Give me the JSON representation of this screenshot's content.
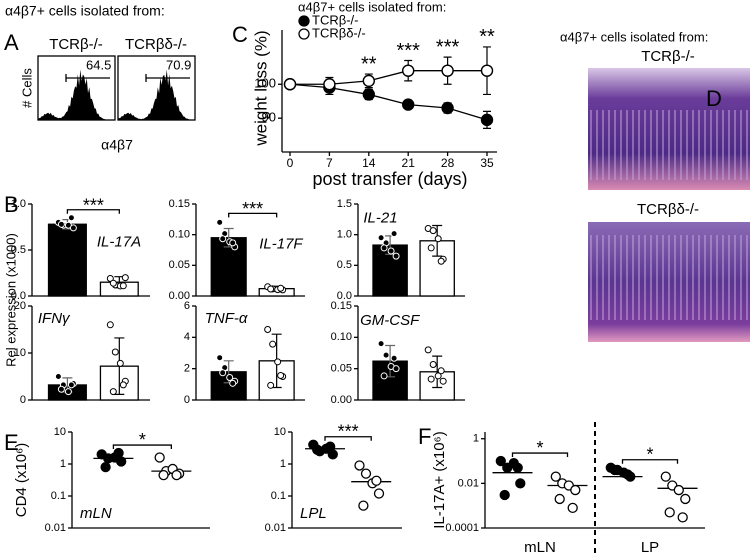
{
  "panel_labels": [
    "A",
    "B",
    "C",
    "D",
    "E",
    "F"
  ],
  "panel_d": {
    "title": "α4β7+ cells isolated from:",
    "labels": [
      "TCRβ-/-",
      "TCRβδ-/-"
    ]
  },
  "chart_data": [
    {
      "type": "flow",
      "title": "α4β7+ cells isolated from:",
      "ylabel": "# Cells",
      "xlabel": "α4β7",
      "samples": [
        {
          "name": "TCRβ-/-",
          "gate": 64.5
        },
        {
          "name": "TCRβδ-/-",
          "gate": 70.9
        }
      ]
    },
    {
      "type": "line",
      "title": "α4β7+ cells isolated from:",
      "xlabel": "post transfer (days)",
      "ylabel": "weight loss (%)",
      "x": [
        0,
        7,
        14,
        21,
        28,
        35
      ],
      "xlim": [
        0,
        35
      ],
      "xticks": [
        0,
        7,
        14,
        21,
        28,
        35
      ],
      "ylim": [
        81.5,
        116
      ],
      "yticks": [
        90,
        100
      ],
      "series": [
        {
          "name": "TCRβ-/-",
          "color": "#000000",
          "values": [
            100,
            99,
            97,
            94,
            93,
            89.5
          ],
          "errors": [
            1,
            2,
            1.5,
            1,
            1.5,
            2.5
          ]
        },
        {
          "name": "TCRβδ-/-",
          "color": "#ffffff",
          "values": [
            100,
            100,
            101,
            104,
            104,
            104
          ],
          "errors": [
            1,
            2,
            2,
            3,
            4,
            7
          ]
        }
      ],
      "annotations": [
        {
          "x": 14,
          "text": "**"
        },
        {
          "x": 21,
          "text": "***"
        },
        {
          "x": 28,
          "text": "***"
        },
        {
          "x": 35,
          "text": "**"
        }
      ]
    },
    {
      "type": "bar",
      "ylabel": "Rel expression (x1000)",
      "label": "IL-17A",
      "colors": [
        "#000000",
        "#ffffff"
      ],
      "ylim": [
        0,
        1
      ],
      "yticks": [
        {
          "value": 0,
          "label": "0.0"
        },
        {
          "value": 0.5,
          "label": "0.5"
        },
        {
          "value": 1,
          "label": "1.0"
        }
      ],
      "values": [
        0.78,
        0.15
      ],
      "errors": [
        0.05,
        0.06
      ],
      "points": [
        [
          0.8,
          0.76,
          0.78,
          0.74,
          0.79,
          0.84
        ],
        [
          0.19,
          0.11,
          0.12,
          0.2,
          0.15,
          0.1
        ]
      ],
      "significance": "***"
    },
    {
      "type": "bar",
      "label": "IL-17F",
      "colors": [
        "#000000",
        "#ffffff"
      ],
      "ylim": [
        0,
        0.15
      ],
      "yticks": [
        {
          "value": 0,
          "label": "0.00"
        },
        {
          "value": 0.05,
          "label": "0.05"
        },
        {
          "value": 0.1,
          "label": "0.10"
        },
        {
          "value": 0.15,
          "label": "0.15"
        }
      ],
      "values": [
        0.095,
        0.012
      ],
      "errors": [
        0.015,
        0.004
      ],
      "points": [
        [
          0.12,
          0.1,
          0.09,
          0.08,
          0.095,
          0.085
        ],
        [
          0.015,
          0.01,
          0.012,
          0.01,
          0.013,
          0.011
        ]
      ],
      "significance": "***"
    },
    {
      "type": "bar",
      "label": "IL-21",
      "colors": [
        "#000000",
        "#ffffff"
      ],
      "ylim": [
        0,
        1.5
      ],
      "yticks": [
        {
          "value": 0,
          "label": "0.0"
        },
        {
          "value": 0.5,
          "label": "0.5"
        },
        {
          "value": 1,
          "label": "1.0"
        },
        {
          "value": 1.5,
          "label": "1.5"
        }
      ],
      "values": [
        0.83,
        0.9
      ],
      "errors": [
        0.15,
        0.25
      ],
      "points": [
        [
          0.95,
          0.85,
          0.75,
          0.65,
          0.8,
          1.0
        ],
        [
          1.1,
          1.05,
          0.95,
          0.6,
          0.8,
          0.55
        ]
      ]
    },
    {
      "type": "bar",
      "label": "IFNγ",
      "colors": [
        "#000000",
        "#ffffff"
      ],
      "ylim": [
        0,
        20
      ],
      "yticks": [
        0,
        10,
        20
      ],
      "values": [
        3.2,
        7.2
      ],
      "errors": [
        1.5,
        6
      ],
      "points": [
        [
          5,
          3,
          2,
          3.5,
          2.5,
          3
        ],
        [
          16,
          10,
          8,
          4,
          2,
          3
        ]
      ]
    },
    {
      "type": "bar",
      "label": "TNF-α",
      "colors": [
        "#000000",
        "#ffffff"
      ],
      "ylim": [
        0,
        6
      ],
      "yticks": [
        0,
        2,
        4,
        6
      ],
      "values": [
        1.8,
        2.5
      ],
      "errors": [
        0.7,
        1.7
      ],
      "points": [
        [
          2.7,
          2,
          1.5,
          1.2,
          1.8,
          1
        ],
        [
          4.5,
          3.5,
          2.5,
          1.5,
          1,
          1.5
        ]
      ]
    },
    {
      "type": "bar",
      "label": "GM-CSF",
      "colors": [
        "#000000",
        "#ffffff"
      ],
      "ylim": [
        0,
        0.15
      ],
      "yticks": [
        {
          "value": 0,
          "label": "0.00"
        },
        {
          "value": 0.05,
          "label": "0.05"
        },
        {
          "value": 0.1,
          "label": "0.10"
        },
        {
          "value": 0.15,
          "label": "0.15"
        }
      ],
      "values": [
        0.062,
        0.045
      ],
      "errors": [
        0.025,
        0.025
      ],
      "points": [
        [
          0.09,
          0.07,
          0.055,
          0.05,
          0.04,
          0.065
        ],
        [
          0.08,
          0.055,
          0.04,
          0.03,
          0.035,
          0.045
        ]
      ]
    },
    {
      "type": "dot",
      "ylabel": "CD4 (x10⁶)",
      "label": "mLN",
      "log": true,
      "colors": [
        "#000000",
        "#ffffff"
      ],
      "ylim": [
        0.01,
        10
      ],
      "yticks": [
        0.01,
        0.1,
        1,
        10
      ],
      "points": [
        [
          2,
          1.5,
          1.6,
          1.2,
          0.8,
          2.2
        ],
        [
          1.6,
          0.6,
          0.7,
          0.5,
          0.45,
          0.45
        ]
      ],
      "medians": [
        1.5,
        0.6
      ],
      "significance": "*"
    },
    {
      "type": "dot",
      "label": "LPL",
      "log": true,
      "colors": [
        "#000000",
        "#ffffff"
      ],
      "ylim": [
        0.01,
        10
      ],
      "yticks": [
        0.01,
        0.1,
        1,
        10
      ],
      "points": [
        [
          4,
          2.5,
          3,
          2,
          2.8,
          3.5
        ],
        [
          0.9,
          0.5,
          0.25,
          0.12,
          0.05,
          0.3
        ]
      ],
      "medians": [
        3,
        0.28
      ],
      "significance": "***"
    },
    {
      "type": "dot",
      "ylabel": "IL-17A+ (x10⁶)",
      "log": true,
      "colors": [
        "#000000",
        "#ffffff"
      ],
      "categories": [
        "mLN",
        "LP"
      ],
      "ylim": [
        0.0001,
        2
      ],
      "yticks": [
        0.0001,
        0.01,
        1
      ],
      "points": [
        [
          [
            0.1,
            0.05,
            0.08,
            0.01,
            0.003,
            0.05
          ],
          [
            0.02,
            0.01,
            0.008,
            0.005,
            0.002,
            0.0008
          ]
        ],
        [
          [
            0.05,
            0.04,
            0.03,
            0.02,
            0.04,
            0.025
          ],
          [
            0.02,
            0.008,
            0.005,
            0.002,
            0.0005,
            0.0003
          ]
        ]
      ],
      "medians": [
        [
          0.03,
          0.008
        ],
        [
          0.02,
          0.006
        ]
      ],
      "significance": [
        "*",
        "*"
      ]
    }
  ]
}
